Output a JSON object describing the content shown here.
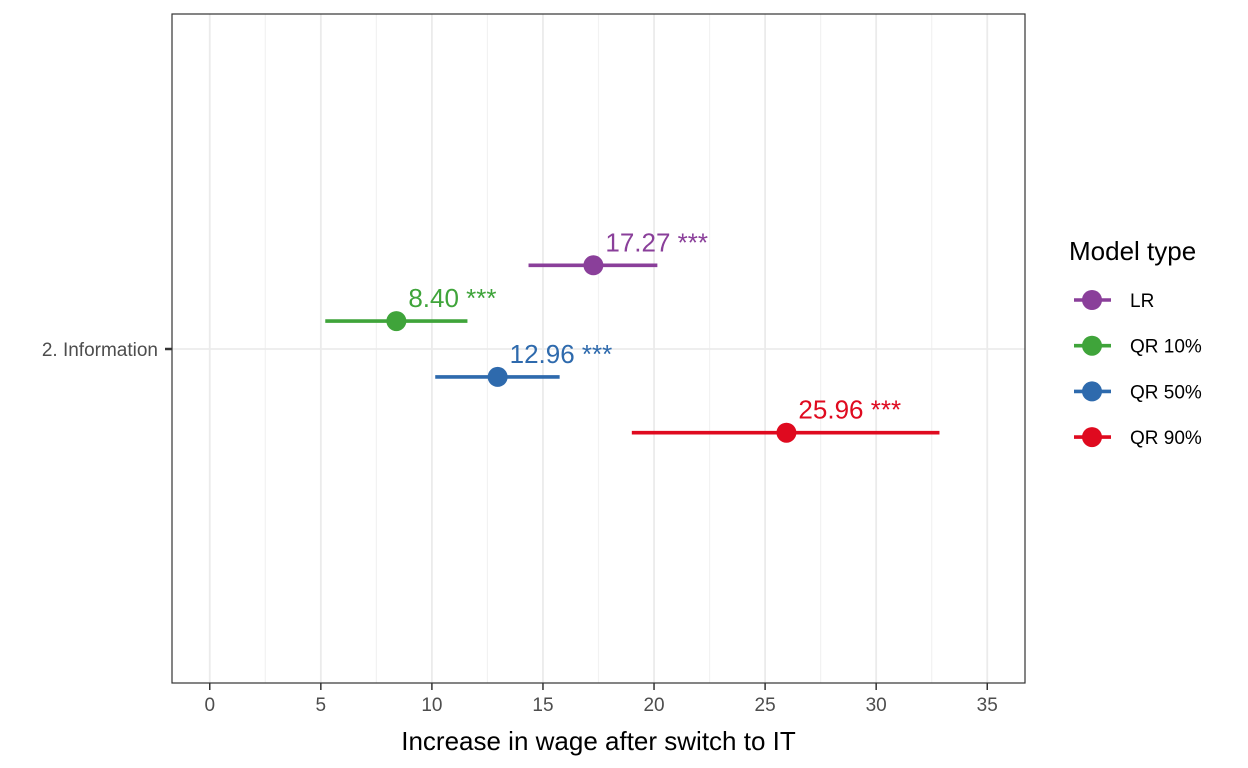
{
  "chart_data": {
    "type": "forest",
    "xlabel": "Increase in wage after switch to IT",
    "xlim": [
      -1.7,
      36.7
    ],
    "x_ticks": [
      0,
      5,
      10,
      15,
      20,
      25,
      30,
      35
    ],
    "category": "2. Information",
    "grid": true,
    "legend": {
      "title": "Model type",
      "position": "right"
    },
    "series": [
      {
        "name": "LR",
        "color": "#8a3f9a",
        "estimate": 17.27,
        "low": 14.35,
        "high": 20.15,
        "label": "17.27 ***"
      },
      {
        "name": "QR 10%",
        "color": "#3fa43a",
        "estimate": 8.4,
        "low": 5.2,
        "high": 11.6,
        "label": "8.40 ***"
      },
      {
        "name": "QR 50%",
        "color": "#2e6aad",
        "estimate": 12.96,
        "low": 10.15,
        "high": 15.75,
        "label": "12.96 ***"
      },
      {
        "name": "QR 90%",
        "color": "#df0a1f",
        "estimate": 25.96,
        "low": 19.0,
        "high": 32.85,
        "label": "25.96 ***"
      }
    ]
  }
}
